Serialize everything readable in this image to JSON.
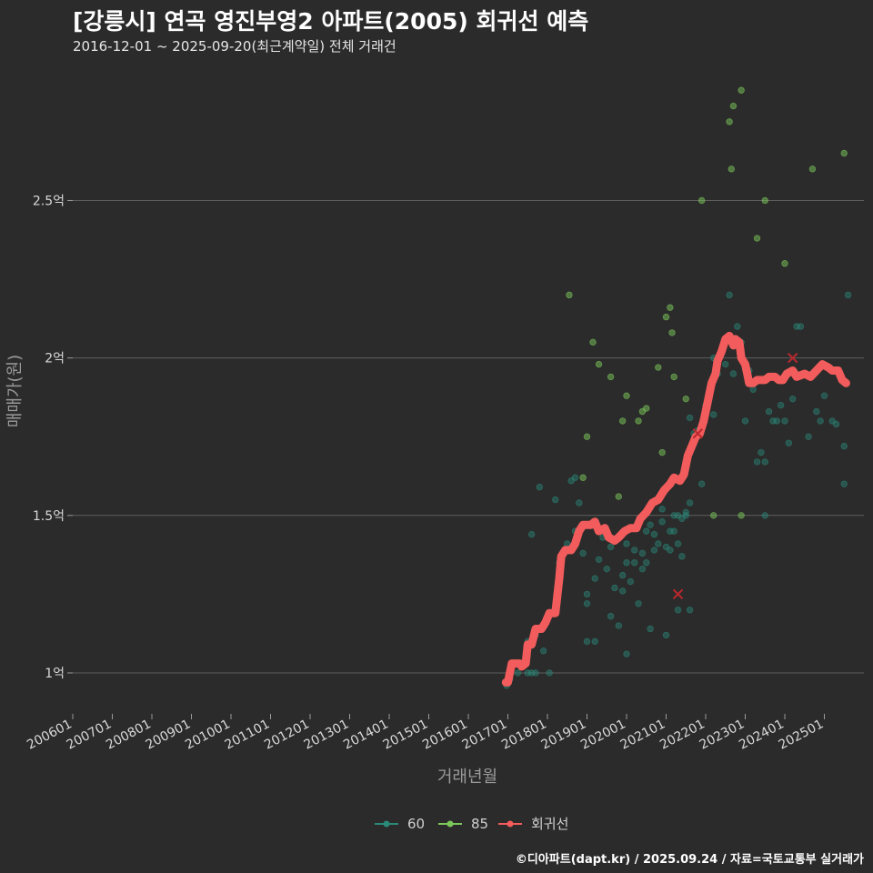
{
  "title": "[강릉시] 연곡 영진부영2 아파트(2005) 회귀선 예측",
  "subtitle": "2016-12-01 ~ 2025-09-20(최근계약일) 전체 거래건",
  "caption": "©디아파트(dapt.kr) / 2025.09.24 / 자료=국토교통부 실거래가",
  "chart_data": {
    "type": "scatter",
    "title": "[강릉시] 연곡 영진부영2 아파트(2005) 회귀선 예측",
    "xlabel": "거래년월",
    "ylabel": "매매가(원)",
    "xlim": [
      2006.0,
      2026.0
    ],
    "ylim": [
      0.87,
      2.92
    ],
    "x_ticks": [
      "200601",
      "200701",
      "200801",
      "200901",
      "201001",
      "201101",
      "201201",
      "201301",
      "201401",
      "201501",
      "201601",
      "201701",
      "201801",
      "201901",
      "202001",
      "202101",
      "202201",
      "202301",
      "202401",
      "202501"
    ],
    "y_ticks": [
      {
        "value": 1.0,
        "label": "1억"
      },
      {
        "value": 1.5,
        "label": "1.5억"
      },
      {
        "value": 2.0,
        "label": "2억"
      },
      {
        "value": 2.5,
        "label": "2.5억"
      }
    ],
    "colors": {
      "s60": "#2a8a7a",
      "s85": "#7cc75a",
      "regression": "#f25c5c",
      "cross": "#b8282e",
      "grid": "#5e5e5e"
    },
    "series": [
      {
        "name": "60",
        "points": [
          [
            2016.95,
            0.97
          ],
          [
            2016.97,
            0.96
          ],
          [
            2017.05,
            0.98
          ],
          [
            2017.25,
            1.0
          ],
          [
            2017.5,
            1.0
          ],
          [
            2017.6,
            1.0
          ],
          [
            2017.7,
            1.0
          ],
          [
            2017.7,
            1.12
          ],
          [
            2017.9,
            1.07
          ],
          [
            2018.05,
            1.0
          ],
          [
            2017.5,
            1.1
          ],
          [
            2017.6,
            1.44
          ],
          [
            2017.8,
            1.59
          ],
          [
            2018.2,
            1.55
          ],
          [
            2018.6,
            1.61
          ],
          [
            2018.7,
            1.62
          ],
          [
            2018.8,
            1.54
          ],
          [
            2018.3,
            1.35
          ],
          [
            2018.5,
            1.41
          ],
          [
            2018.7,
            1.45
          ],
          [
            2018.9,
            1.38
          ],
          [
            2019.0,
            1.25
          ],
          [
            2019.0,
            1.22
          ],
          [
            2019.0,
            1.1
          ],
          [
            2019.2,
            1.3
          ],
          [
            2019.2,
            1.1
          ],
          [
            2019.3,
            1.36
          ],
          [
            2019.4,
            1.43
          ],
          [
            2019.5,
            1.33
          ],
          [
            2019.6,
            1.4
          ],
          [
            2019.6,
            1.18
          ],
          [
            2019.7,
            1.27
          ],
          [
            2019.8,
            1.15
          ],
          [
            2019.9,
            1.31
          ],
          [
            2019.9,
            1.26
          ],
          [
            2020.0,
            1.35
          ],
          [
            2020.0,
            1.41
          ],
          [
            2020.0,
            1.06
          ],
          [
            2020.1,
            1.29
          ],
          [
            2020.2,
            1.35
          ],
          [
            2020.2,
            1.39
          ],
          [
            2020.3,
            1.22
          ],
          [
            2020.4,
            1.38
          ],
          [
            2020.4,
            1.33
          ],
          [
            2020.5,
            1.45
          ],
          [
            2020.5,
            1.35
          ],
          [
            2020.6,
            1.47
          ],
          [
            2020.6,
            1.14
          ],
          [
            2020.7,
            1.44
          ],
          [
            2020.7,
            1.39
          ],
          [
            2020.8,
            1.41
          ],
          [
            2020.9,
            1.52
          ],
          [
            2020.9,
            1.48
          ],
          [
            2021.0,
            1.4
          ],
          [
            2021.0,
            1.12
          ],
          [
            2021.1,
            1.45
          ],
          [
            2021.1,
            1.39
          ],
          [
            2021.2,
            1.5
          ],
          [
            2021.2,
            1.45
          ],
          [
            2021.3,
            1.41
          ],
          [
            2021.3,
            1.5
          ],
          [
            2021.3,
            1.2
          ],
          [
            2021.4,
            1.37
          ],
          [
            2021.4,
            1.49
          ],
          [
            2021.5,
            1.5
          ],
          [
            2021.5,
            1.51
          ],
          [
            2021.6,
            1.81
          ],
          [
            2021.6,
            1.54
          ],
          [
            2021.6,
            1.2
          ],
          [
            2021.7,
            1.76
          ],
          [
            2021.8,
            1.77
          ],
          [
            2021.9,
            1.6
          ],
          [
            2022.0,
            1.85
          ],
          [
            2022.1,
            1.9
          ],
          [
            2022.2,
            1.82
          ],
          [
            2022.3,
            1.95
          ],
          [
            2022.5,
            1.98
          ],
          [
            2022.6,
            2.2
          ],
          [
            2022.7,
            1.95
          ],
          [
            2022.8,
            2.1
          ],
          [
            2022.9,
            2.05
          ],
          [
            2023.0,
            1.8
          ],
          [
            2023.1,
            1.96
          ],
          [
            2023.2,
            1.9
          ],
          [
            2023.3,
            1.67
          ],
          [
            2023.4,
            1.7
          ],
          [
            2023.5,
            1.67
          ],
          [
            2023.6,
            1.83
          ],
          [
            2023.7,
            1.8
          ],
          [
            2023.8,
            1.8
          ],
          [
            2023.9,
            1.85
          ],
          [
            2024.0,
            1.8
          ],
          [
            2024.1,
            1.73
          ],
          [
            2024.2,
            1.87
          ],
          [
            2024.3,
            2.1
          ],
          [
            2024.4,
            2.1
          ],
          [
            2024.5,
            1.95
          ],
          [
            2024.6,
            1.75
          ],
          [
            2024.8,
            1.83
          ],
          [
            2024.9,
            1.8
          ],
          [
            2025.0,
            1.88
          ],
          [
            2025.2,
            1.8
          ],
          [
            2025.3,
            1.79
          ],
          [
            2025.5,
            1.72
          ],
          [
            2025.5,
            1.6
          ],
          [
            2025.6,
            2.2
          ],
          [
            2023.5,
            1.5
          ],
          [
            2022.2,
            2.0
          ]
        ]
      },
      {
        "name": "85",
        "points": [
          [
            2018.55,
            2.2
          ],
          [
            2018.9,
            1.62
          ],
          [
            2019.0,
            1.75
          ],
          [
            2019.15,
            2.05
          ],
          [
            2019.3,
            1.98
          ],
          [
            2019.6,
            1.94
          ],
          [
            2019.8,
            1.56
          ],
          [
            2019.9,
            1.8
          ],
          [
            2020.0,
            1.88
          ],
          [
            2020.3,
            1.8
          ],
          [
            2020.4,
            1.83
          ],
          [
            2020.5,
            1.84
          ],
          [
            2020.8,
            1.97
          ],
          [
            2020.9,
            1.7
          ],
          [
            2021.0,
            2.13
          ],
          [
            2021.1,
            2.16
          ],
          [
            2021.15,
            2.08
          ],
          [
            2021.2,
            1.94
          ],
          [
            2021.5,
            1.87
          ],
          [
            2021.9,
            2.5
          ],
          [
            2022.2,
            1.5
          ],
          [
            2022.6,
            2.75
          ],
          [
            2022.7,
            2.8
          ],
          [
            2022.9,
            2.85
          ],
          [
            2022.9,
            1.5
          ],
          [
            2022.65,
            2.6
          ],
          [
            2023.3,
            2.38
          ],
          [
            2023.5,
            2.5
          ],
          [
            2024.0,
            2.3
          ],
          [
            2024.7,
            2.6
          ],
          [
            2025.5,
            2.65
          ]
        ]
      },
      {
        "name": "회귀선",
        "points": [
          [
            2016.95,
            0.97
          ],
          [
            2017.0,
            0.97
          ],
          [
            2017.1,
            1.03
          ],
          [
            2017.3,
            1.03
          ],
          [
            2017.35,
            1.02
          ],
          [
            2017.45,
            1.03
          ],
          [
            2017.5,
            1.09
          ],
          [
            2017.6,
            1.09
          ],
          [
            2017.7,
            1.14
          ],
          [
            2017.85,
            1.14
          ],
          [
            2017.95,
            1.16
          ],
          [
            2018.05,
            1.19
          ],
          [
            2018.2,
            1.19
          ],
          [
            2018.3,
            1.3
          ],
          [
            2018.35,
            1.37
          ],
          [
            2018.45,
            1.39
          ],
          [
            2018.6,
            1.39
          ],
          [
            2018.7,
            1.41
          ],
          [
            2018.8,
            1.45
          ],
          [
            2018.9,
            1.47
          ],
          [
            2019.1,
            1.47
          ],
          [
            2019.2,
            1.48
          ],
          [
            2019.3,
            1.45
          ],
          [
            2019.45,
            1.46
          ],
          [
            2019.55,
            1.43
          ],
          [
            2019.7,
            1.42
          ],
          [
            2019.8,
            1.43
          ],
          [
            2019.95,
            1.45
          ],
          [
            2020.1,
            1.46
          ],
          [
            2020.25,
            1.46
          ],
          [
            2020.35,
            1.49
          ],
          [
            2020.5,
            1.51
          ],
          [
            2020.65,
            1.54
          ],
          [
            2020.8,
            1.55
          ],
          [
            2020.95,
            1.58
          ],
          [
            2021.1,
            1.6
          ],
          [
            2021.2,
            1.62
          ],
          [
            2021.35,
            1.61
          ],
          [
            2021.45,
            1.63
          ],
          [
            2021.55,
            1.69
          ],
          [
            2021.65,
            1.72
          ],
          [
            2021.75,
            1.75
          ],
          [
            2021.85,
            1.76
          ],
          [
            2021.95,
            1.8
          ],
          [
            2022.05,
            1.86
          ],
          [
            2022.15,
            1.92
          ],
          [
            2022.25,
            1.95
          ],
          [
            2022.3,
            1.99
          ],
          [
            2022.4,
            2.02
          ],
          [
            2022.5,
            2.06
          ],
          [
            2022.6,
            2.07
          ],
          [
            2022.7,
            2.04
          ],
          [
            2022.75,
            2.06
          ],
          [
            2022.85,
            2.05
          ],
          [
            2022.9,
            2.0
          ],
          [
            2023.0,
            1.98
          ],
          [
            2023.05,
            1.95
          ],
          [
            2023.1,
            1.92
          ],
          [
            2023.2,
            1.92
          ],
          [
            2023.3,
            1.93
          ],
          [
            2023.5,
            1.93
          ],
          [
            2023.6,
            1.94
          ],
          [
            2023.75,
            1.94
          ],
          [
            2023.85,
            1.93
          ],
          [
            2023.95,
            1.93
          ],
          [
            2024.05,
            1.95
          ],
          [
            2024.2,
            1.96
          ],
          [
            2024.3,
            1.94
          ],
          [
            2024.5,
            1.95
          ],
          [
            2024.65,
            1.94
          ],
          [
            2024.8,
            1.96
          ],
          [
            2024.95,
            1.98
          ],
          [
            2025.1,
            1.97
          ],
          [
            2025.2,
            1.96
          ],
          [
            2025.35,
            1.96
          ],
          [
            2025.45,
            1.93
          ],
          [
            2025.55,
            1.92
          ]
        ]
      }
    ],
    "outliers": [
      [
        2021.3,
        1.25
      ],
      [
        2021.8,
        1.76
      ],
      [
        2024.2,
        2.0
      ]
    ],
    "legend": [
      "60",
      "85",
      "회귀선"
    ]
  }
}
